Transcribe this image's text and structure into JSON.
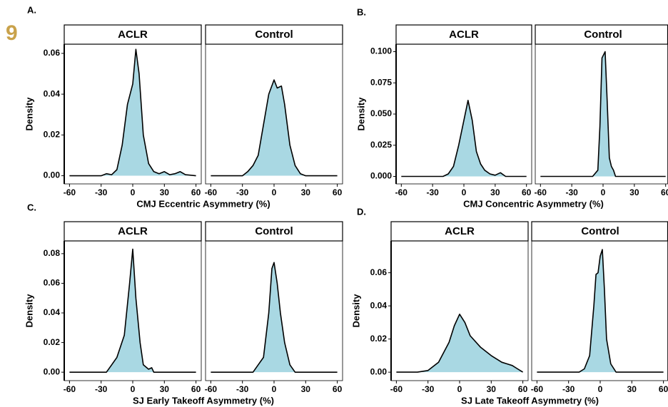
{
  "badge": "9",
  "chart_data": [
    {
      "type": "density",
      "label": "A.",
      "x_label": "CMJ Eccentric Asymmetry (%)",
      "y_label": "Density",
      "color": "#a9d8e3",
      "xlim": [
        -65,
        65
      ],
      "xticks": [
        -60,
        -30,
        0,
        30,
        60
      ],
      "ylim": [
        -0.004,
        0.0645
      ],
      "yticks": [
        {
          "value": 0,
          "label": "0.00"
        },
        0.02,
        0.04,
        0.06
      ],
      "facets": [
        {
          "name": "ACLR",
          "x": [
            -60,
            -30,
            -25,
            -20,
            -15,
            -10,
            -5,
            0,
            3,
            6,
            10,
            15,
            20,
            25,
            30,
            35,
            40,
            45,
            50,
            60
          ],
          "values": [
            0,
            0,
            0.001,
            0.0005,
            0.003,
            0.015,
            0.035,
            0.045,
            0.062,
            0.05,
            0.02,
            0.006,
            0.002,
            0.001,
            0.002,
            0.0005,
            0.001,
            0.002,
            0.0005,
            0
          ]
        },
        {
          "name": "Control",
          "x": [
            -60,
            -30,
            -25,
            -20,
            -15,
            -10,
            -5,
            0,
            3,
            7,
            10,
            15,
            20,
            25,
            30,
            60
          ],
          "values": [
            0,
            0,
            0.002,
            0.005,
            0.01,
            0.025,
            0.04,
            0.047,
            0.043,
            0.044,
            0.035,
            0.015,
            0.005,
            0.001,
            0,
            0
          ]
        }
      ]
    },
    {
      "type": "density",
      "label": "B.",
      "x_label": "CMJ Concentric Asymmetry (%)",
      "y_label": "Density",
      "color": "#a9d8e3",
      "xlim": [
        -65,
        65
      ],
      "xticks": [
        -60,
        -30,
        0,
        30,
        60
      ],
      "ylim": [
        -0.006,
        0.106
      ],
      "yticks": [
        {
          "value": 0,
          "label": "0.000"
        },
        0.025,
        {
          "value": 0.05,
          "label": "0.050"
        },
        0.075,
        {
          "value": 0.1,
          "label": "0.100"
        }
      ],
      "facets": [
        {
          "name": "ACLR",
          "x": [
            -60,
            -20,
            -15,
            -10,
            -5,
            0,
            4,
            8,
            12,
            16,
            20,
            25,
            30,
            35,
            40,
            60
          ],
          "values": [
            0,
            0,
            0.002,
            0.008,
            0.025,
            0.045,
            0.061,
            0.045,
            0.02,
            0.01,
            0.005,
            0.002,
            0.001,
            0.003,
            0,
            0
          ]
        },
        {
          "name": "Control",
          "x": [
            -60,
            -10,
            -5,
            -3,
            -1,
            2,
            4,
            6,
            8,
            10,
            12,
            60
          ],
          "values": [
            0,
            0,
            0.005,
            0.04,
            0.095,
            0.1,
            0.06,
            0.015,
            0.008,
            0.005,
            0,
            0
          ]
        }
      ]
    },
    {
      "type": "density",
      "label": "C.",
      "x_label": "SJ Early Takeoff Asymmetry (%)",
      "y_label": "Density",
      "color": "#a9d8e3",
      "xlim": [
        -65,
        65
      ],
      "xticks": [
        -60,
        -30,
        0,
        30,
        60
      ],
      "ylim": [
        -0.0057,
        0.0886
      ],
      "yticks": [
        {
          "value": 0,
          "label": "0.00"
        },
        0.02,
        0.04,
        0.06,
        0.08
      ],
      "facets": [
        {
          "name": "ACLR",
          "x": [
            -60,
            -25,
            -20,
            -15,
            -8,
            -3,
            0,
            3,
            7,
            10,
            15,
            18,
            20,
            60
          ],
          "values": [
            0,
            0,
            0.005,
            0.01,
            0.025,
            0.06,
            0.083,
            0.05,
            0.02,
            0.005,
            0.002,
            0.003,
            0,
            0
          ]
        },
        {
          "name": "Control",
          "x": [
            -60,
            -20,
            -15,
            -10,
            -5,
            -2,
            0,
            3,
            6,
            10,
            15,
            20,
            60
          ],
          "values": [
            0,
            0,
            0.005,
            0.01,
            0.04,
            0.07,
            0.074,
            0.06,
            0.04,
            0.02,
            0.005,
            0,
            0
          ]
        }
      ]
    },
    {
      "type": "density",
      "label": "D.",
      "x_label": "SJ Late Takeoff Asymmetry (%)",
      "y_label": "Density",
      "color": "#a9d8e3",
      "xlim": [
        -65,
        65
      ],
      "xticks": [
        -60,
        -30,
        0,
        30,
        60
      ],
      "ylim": [
        -0.0051,
        0.0792
      ],
      "yticks": [
        {
          "value": 0,
          "label": "0.00"
        },
        0.02,
        0.04,
        0.06
      ],
      "facets": [
        {
          "name": "ACLR",
          "x": [
            -60,
            -40,
            -30,
            -20,
            -10,
            -5,
            0,
            5,
            10,
            20,
            30,
            40,
            45,
            50,
            55,
            60
          ],
          "values": [
            0,
            0,
            0.001,
            0.006,
            0.018,
            0.028,
            0.035,
            0.03,
            0.022,
            0.015,
            0.01,
            0.006,
            0.005,
            0.004,
            0.002,
            0
          ]
        },
        {
          "name": "Control",
          "x": [
            -60,
            -20,
            -15,
            -10,
            -6,
            -4,
            -2,
            0,
            2,
            4,
            6,
            10,
            15,
            60
          ],
          "values": [
            0,
            0,
            0.002,
            0.01,
            0.04,
            0.059,
            0.06,
            0.07,
            0.074,
            0.05,
            0.02,
            0.005,
            0,
            0
          ]
        }
      ]
    }
  ]
}
